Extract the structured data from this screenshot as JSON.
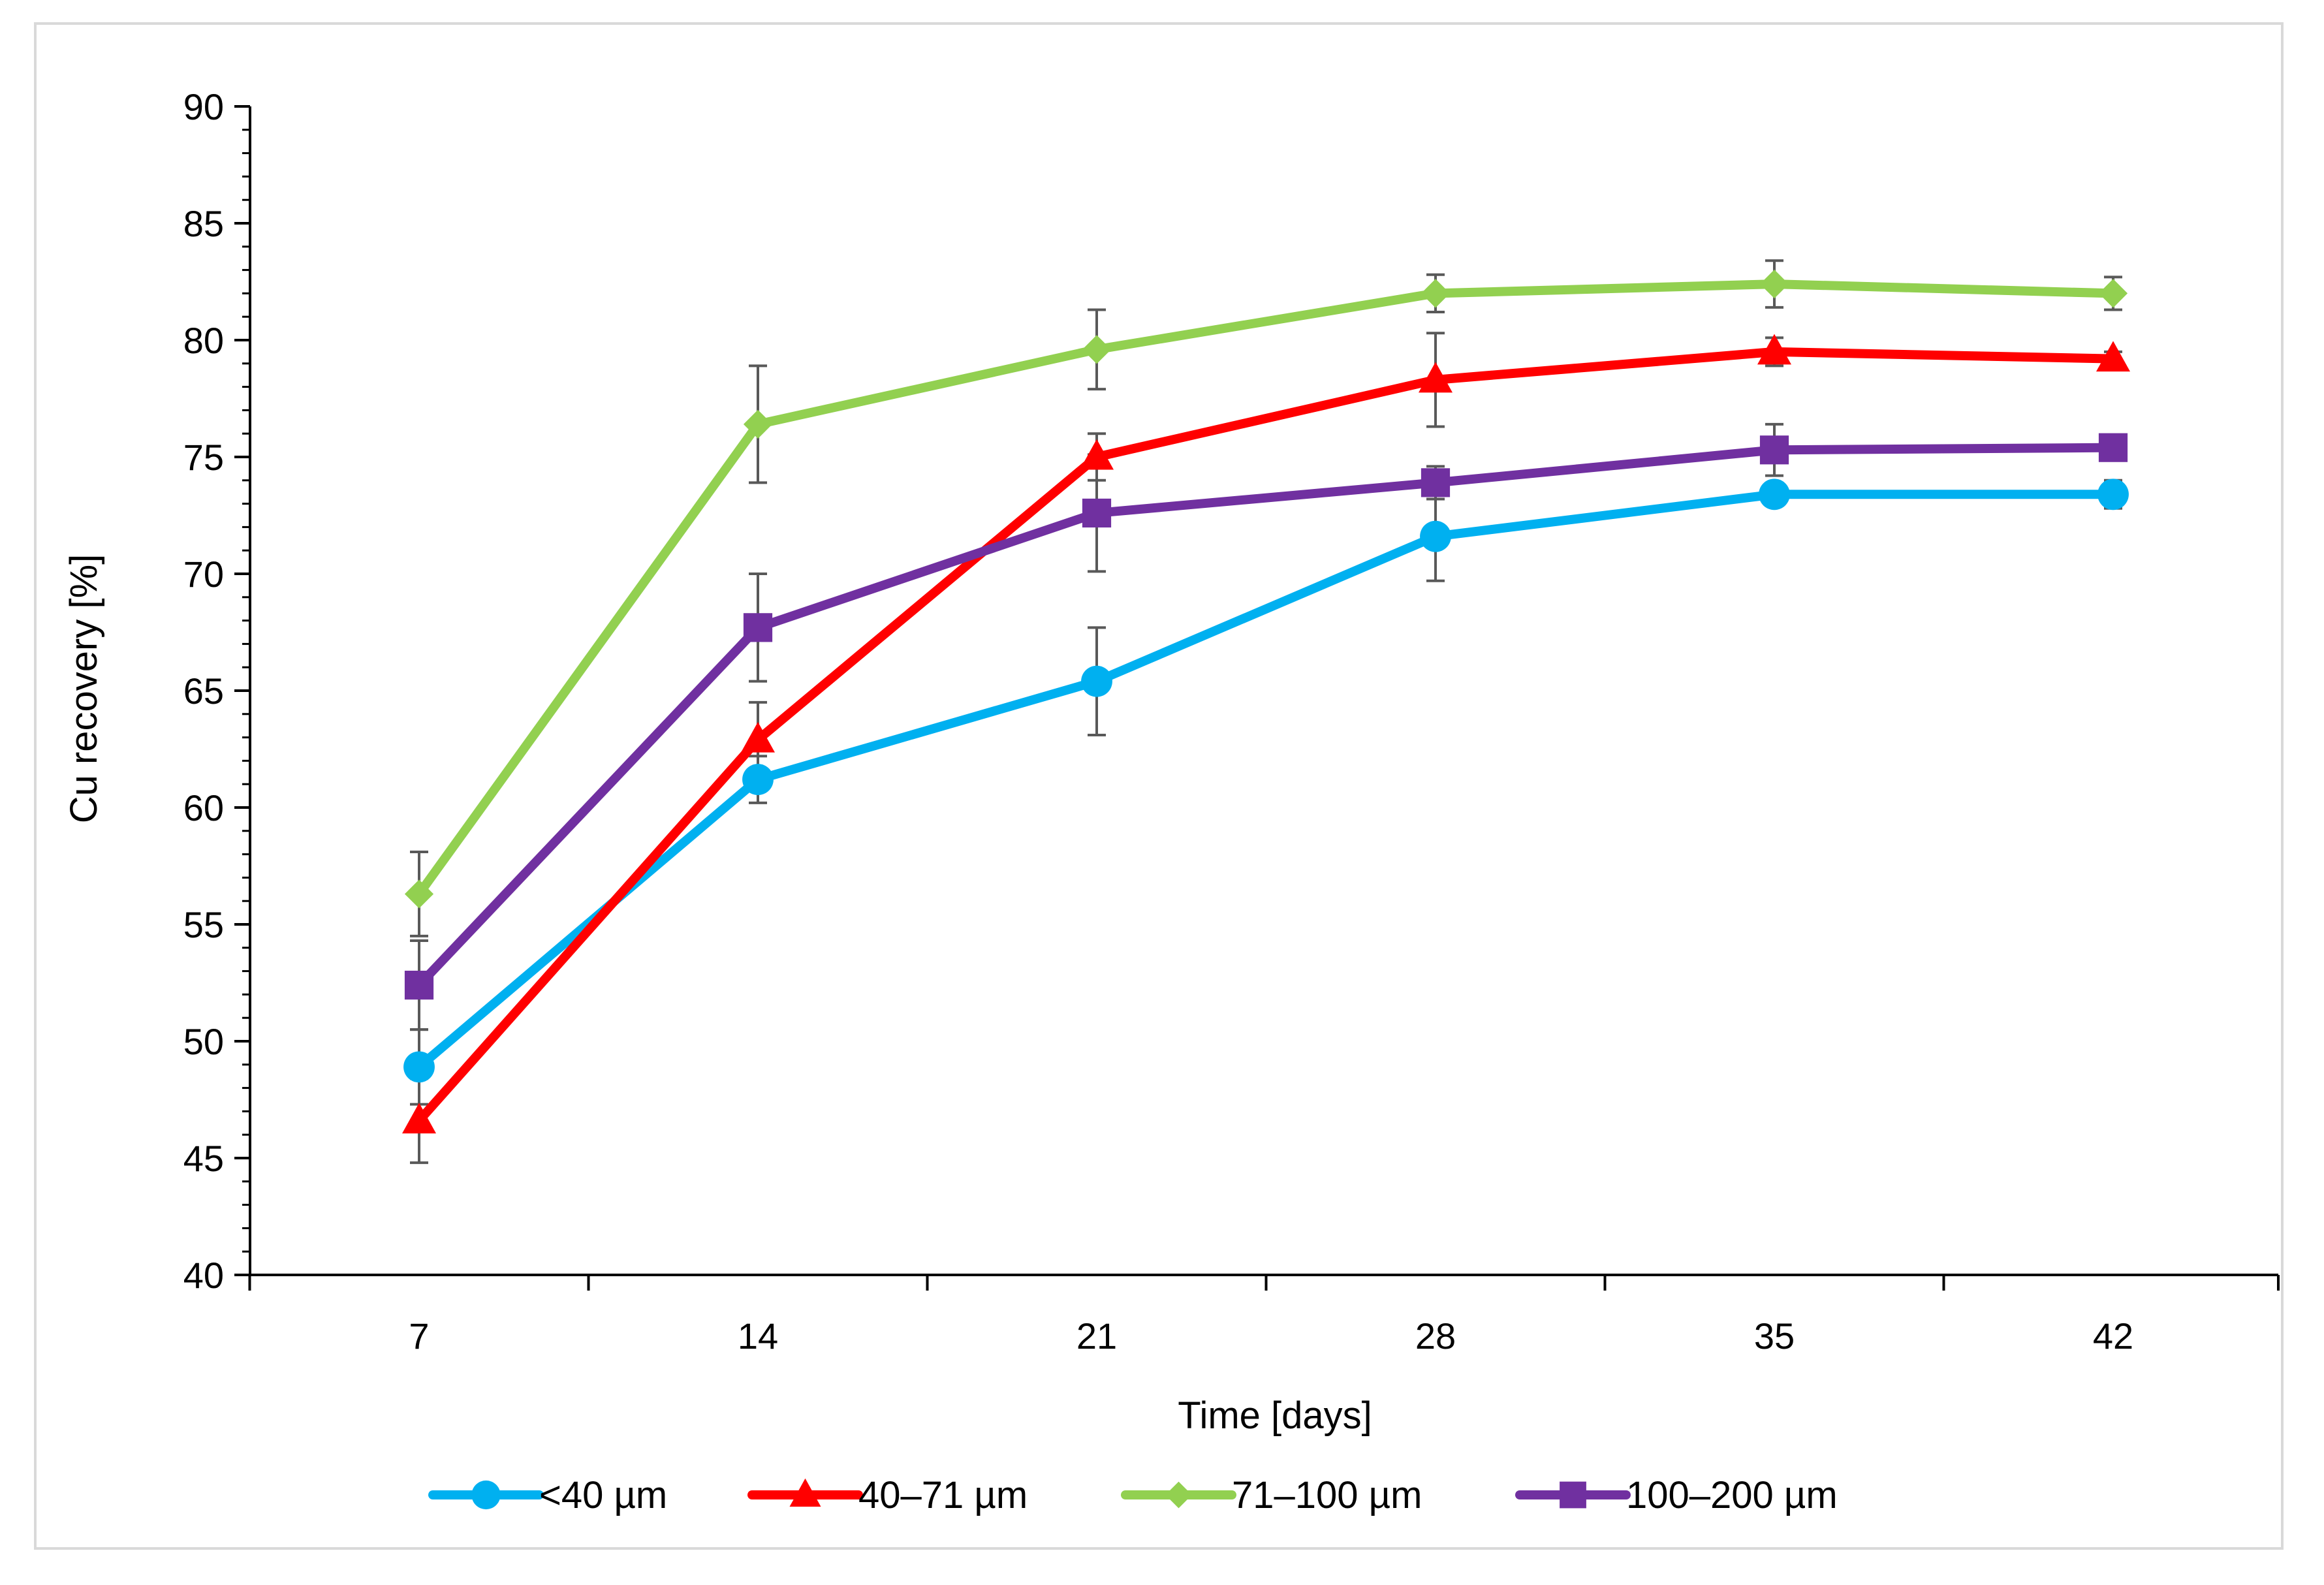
{
  "chart_data": {
    "type": "line",
    "title": "",
    "xlabel": "Time [days]",
    "ylabel": "Cu recovery [%]",
    "x": [
      7,
      14,
      21,
      28,
      35,
      42
    ],
    "x_tick_labels": [
      "7",
      "14",
      "21",
      "28",
      "35",
      "42"
    ],
    "y_tick_labels": [
      "40",
      "45",
      "50",
      "55",
      "60",
      "65",
      "70",
      "75",
      "80",
      "85",
      "90"
    ],
    "ylim": [
      40,
      90
    ],
    "y_major_step": 5,
    "y_minor_step": 1,
    "grid": false,
    "error_bars": true,
    "legend_position": "bottom",
    "series": [
      {
        "name": "<40 µm",
        "color": "#00b0f0",
        "marker": "circle",
        "values": [
          48.9,
          61.2,
          65.4,
          71.6,
          73.4,
          73.4
        ],
        "error": [
          1.6,
          1.0,
          2.3,
          1.9,
          0.4,
          0.6
        ]
      },
      {
        "name": "40–71 µm",
        "color": "#ff0000",
        "marker": "triangle",
        "values": [
          46.6,
          62.9,
          75.0,
          78.3,
          79.5,
          79.2
        ],
        "error": [
          1.8,
          1.6,
          1.0,
          2.0,
          0.6,
          0.3
        ]
      },
      {
        "name": "71–100 µm",
        "color": "#92d050",
        "marker": "diamond",
        "values": [
          56.3,
          76.4,
          79.6,
          82.0,
          82.4,
          82.0
        ],
        "error": [
          1.8,
          2.5,
          1.7,
          0.8,
          1.0,
          0.7
        ]
      },
      {
        "name": "100–200 µm",
        "color": "#7030a0",
        "marker": "square",
        "values": [
          52.4,
          67.7,
          72.6,
          73.9,
          75.3,
          75.4
        ],
        "error": [
          1.9,
          2.3,
          2.5,
          0.7,
          1.1,
          0.5
        ]
      }
    ]
  }
}
